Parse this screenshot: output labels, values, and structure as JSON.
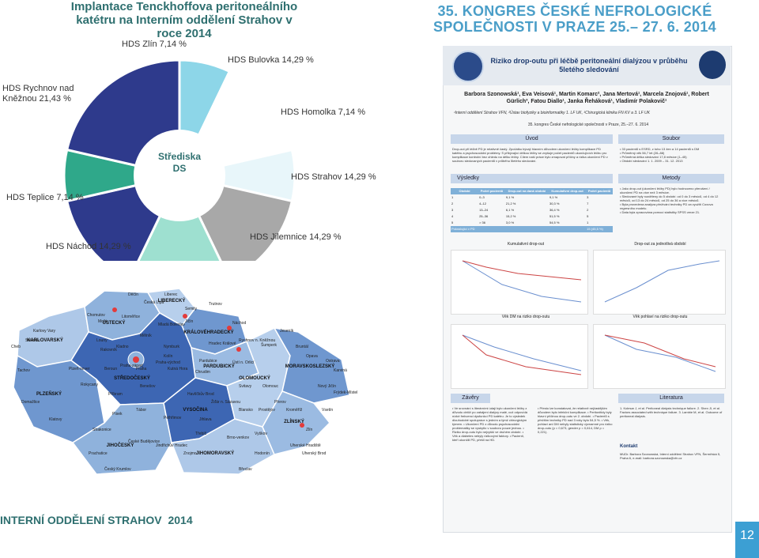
{
  "header": {
    "left_title": "Implantace Tenckhoffova peritoneálního katétru na Interním oddělení Strahov v roce 2014",
    "right_title": "35. KONGRES ČESKÉ NEFROLOGICKÉ SPOLEČNOSTI V PRAZE 25.– 27. 6. 2014"
  },
  "pie": {
    "center_label": "Střediska DS",
    "labels": {
      "zlin": "HDS Zlín 7,14 %",
      "bulovka": "HDS Bulovka 14,29 %",
      "homolka": "HDS Homolka 7,14 %",
      "rychnov": "HDS Rychnov nad Kněžnou 21,43 %",
      "strahov": "HDS Strahov 14,29 %",
      "teplice": "HDS Teplice 7,14 %",
      "nachod": "HDS Náchod 14,29 %",
      "jilemnice": "HDS Jilemnice 14,29 %"
    },
    "colors": {
      "zlin": "#8dd6e8",
      "bulovka": "#ffffff",
      "homolka": "#e8f6fa",
      "rychnov": "#2e3a8c",
      "strahov": "#a8a8a8",
      "teplice": "#2fa88a",
      "nachod": "#2e3a8c",
      "jilemnice": "#9ee0d0"
    },
    "chart_data": {
      "type": "pie",
      "categories": [
        "HDS Zlín",
        "HDS Bulovka",
        "HDS Homolka",
        "HDS Strahov",
        "HDS Jilemnice",
        "HDS Náchod",
        "HDS Teplice",
        "HDS Rychnov nad Kněžnou"
      ],
      "values": [
        7.14,
        14.29,
        7.14,
        14.29,
        14.29,
        14.29,
        7.14,
        21.43
      ]
    }
  },
  "map": {
    "regions": [
      "LIBERECKÝ",
      "ÚSTECKÝ",
      "KARLOVARSKÝ",
      "KRÁLOVÉHRADECKÝ",
      "PARDUBICKÝ",
      "STŘEDOČESKÝ",
      "PLZEŇSKÝ",
      "JIHOČESKÝ",
      "VYSOČINA",
      "JIHOMORAVSKÝ",
      "OLOMOUCKÝ",
      "MORAVSKOSLEZSKÝ",
      "ZLÍNSKÝ"
    ],
    "cities": [
      "Děčín",
      "Liberec",
      "Chomutov",
      "Most",
      "Litoměřice",
      "Česká Lípa",
      "Semily",
      "Trutnov",
      "Mladá Boleslav",
      "Jičín",
      "Náchod",
      "Louny",
      "Mělník",
      "Hradec Králové",
      "Rychnov n. Kněžnou",
      "Karlovy Vary",
      "Sokolov",
      "Cheb",
      "Rakovník",
      "Kladno",
      "Nymburk",
      "Kolín",
      "Pardubice",
      "Chrudim",
      "Ústí n. Orlicí",
      "Šumperk",
      "Jeseník",
      "Bruntál",
      "Opava",
      "Ostrava",
      "Karviná",
      "Nový Jičín",
      "Frýdek-Místek",
      "Plzeň-sever",
      "Tachov",
      "Rokycany",
      "Beroun",
      "Příbram",
      "Benešov",
      "Kutná Hora",
      "Havlíčkův Brod",
      "Žďár n. Sázavou",
      "Svitavy",
      "Olomouc",
      "Přerov",
      "Vsetín",
      "Domažlice",
      "Klatovy",
      "Písek",
      "Tábor",
      "Pelhřimov",
      "Jihlava",
      "Třebíč",
      "Blansko",
      "Prostějov",
      "Kroměříž",
      "Zlín",
      "Strakonice",
      "Prachatice",
      "Český Krumlov",
      "Jindřichův Hradec",
      "Znojmo",
      "Brno-venkov",
      "Vyškov",
      "Hodonín",
      "Břeclav",
      "Uherské Hradiště",
      "Uherský Brod",
      "České Budějovice",
      "Praha",
      "Praha-západ",
      "Praha-východ"
    ]
  },
  "poster": {
    "title": "Riziko drop-outu při léčbě peritoneální dialýzou v průběhu 5letého sledování",
    "authors": "Barbora Szonowská¹, Eva Veisová¹, Martin Komarc², Jana Mertová¹, Marcela Znojová¹, Robert Gürlich³, Fatou Diallo¹, Janka Řeháková¹, Vladimír Polakovič¹",
    "affiliations": "¹Interní oddělení Strahov VFN, ²Ústav biofyziky a bioinformatiky 1. LF UK, ³Chirurgická klinika FN KV a 3. LF UK",
    "congress": "35. kongres České nefrologické společnosti v Praze, 25.–27. 6. 2014",
    "sections": {
      "uvod": "Úvod",
      "soubor": "Soubor",
      "vysledky": "Výsledky",
      "metody": "Metody",
      "zavery": "Závěry",
      "literatura": "Literatura",
      "kontakt": "Kontakt"
    },
    "uvod_text": "Drop-out při léčbě PD je relativně častý. Zpočátku bývají hlavním důvodem ukončení léčby komplikace PD katétru a psychosociální problémy. S přibývající délkou léčby se zvyšuje počet pacientů ukončujících léčbu pro komplikace kontrolní bez ohledu na délku léčby. Cílem naší práce bylo zmapovat příčiny a rizika ukončení PD v souboru sledovaných pacientů v průběhu 5letého sledování.",
    "soubor_items": [
      "• 33 pacientů s ESRD, z toho 13 žen a 14 pacientů s DM",
      "• Průměrný věk 56,7 let (26–88)",
      "• Průměrná délka sledování 17,8 měsíce (1–45)",
      "• Období sledování 1. 1. 2009 – 31. 12. 2013"
    ],
    "metody_items": [
      "• Jako drop-out (ukončení léčby PD) bylo hodnoceno přerušení / ukončení PD na více než 3 měsíce.",
      "• Sledované byly rozděleny do 5 období: od 0 do 3 měsíců, od 4 do 12 měsíců, od 13 do 24 měsíců, od 25 do 36 a více měsíců.",
      "• Byla provedena analýza přežívání techniky PD za využití Coxova regresního modelu.",
      "• Data byla zpracována pomocí statistiky SPSS verze 21."
    ],
    "table_headers": [
      "Období",
      "Počet pacientů",
      "Drop-out na daná období",
      "Kumulativní drop-out",
      "Počet pacientů"
    ],
    "table_rows": [
      [
        "1",
        "0–3",
        "9,1 %",
        "9,1 %",
        "3"
      ],
      [
        "2",
        "4–12",
        "21,2 %",
        "30,3 %",
        "7"
      ],
      [
        "3",
        "13–24",
        "6,1 %",
        "36,4 %",
        "2"
      ],
      [
        "4",
        "25–36",
        "15,2 %",
        "51,5 %",
        "5"
      ],
      [
        "5",
        "> 36",
        "3,0 %",
        "54,5 %",
        "1"
      ]
    ],
    "table_total": [
      "Pokračující v PD",
      "",
      "",
      "",
      "15 (45,5 %)"
    ],
    "charts": {
      "c1_title": "Kumulativní drop-out",
      "c2_title": "Drop-out za jednotlivá období",
      "c3_title": "Věk DM na riziko drop-outu",
      "c4_title": "Věk pohlaví na riziko drop-outu"
    },
    "zavery_text": "• Ve srovnání s literárními údaji bylo ukončení léčby z důvodu obtíží po zahájení dialýzy malé, což odpovídá nízké frekvenci dysfunkcí PD katétru. Je to výsledek dlouhodobé spolupráce s jedním a týmž chirurgickým týmem. • Ukončení PD z důvodu psychosociální problematiky se vyskytlo v souboru pouze jednou. • Riziko drop-outu bylo nejvyšší ve druhém období. • Věk a diabetes nebyly rizikovými faktory. • Pacienti, kteří ukončili PD, přešli na HD.",
    "zavery_text2": "• Přesto lze konstatovat, že relativně nejčastějším důvodem bylo infekční komplikace. • Peritonitidy byly hlavní příčinou drop-outu ve 2. období. • Pacientů s přežitím techniky PD nad 3 roky bylo 54,5 %. • Věk, pohlaví ani DM nebyly statisticky významné pro riziko drop-outu (p = 0,673, gender p = 0,614, DM p = 0,221).",
    "literatura_text": "1. Kolesar J, et al. Peritoneal dialysis technique failure. 2. Shen JI, et al. Factors associated with technique failure. 3. Lambie M, et al. Outcome of peritoneal dialysis.",
    "kontakt_text": "MUDr. Barbora Szonowská, Interní oddělení Strahov VFN, Šermířská 5, Praha 6, e-mail: barbora.szonowska@vfn.cz"
  },
  "footer": {
    "left": "INTERNÍ ODDĚLENÍ STRAHOV",
    "year": "2014",
    "page": "12"
  }
}
